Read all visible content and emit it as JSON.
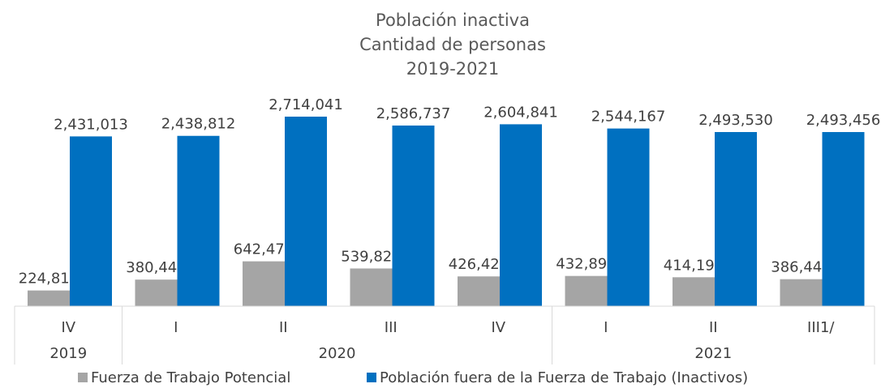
{
  "chart_data": {
    "type": "bar",
    "title": "Población inactiva",
    "subtitle": "Cantidad de personas",
    "period": "2019-2021",
    "categories": [
      "IV",
      "I",
      "II",
      "III",
      "IV",
      "I",
      "II",
      "III1/"
    ],
    "x_groups": [
      {
        "label": "2019",
        "categories": [
          "IV"
        ]
      },
      {
        "label": "2020",
        "categories": [
          "I",
          "II",
          "III",
          "IV"
        ]
      },
      {
        "label": "2021",
        "categories": [
          "I",
          "II",
          "III1/"
        ]
      }
    ],
    "series": [
      {
        "name": "Fuerza de Trabajo Potencial",
        "color": "#a5a5a5",
        "values": [
          224819,
          380448,
          642479,
          539822,
          426425,
          432896,
          414195,
          386441
        ],
        "value_labels": [
          "224,819",
          "380,448",
          "642,479",
          "539,822",
          "426,425",
          "432,896",
          "414,195",
          "386,441"
        ]
      },
      {
        "name": "Población fuera de la Fuerza de Trabajo (Inactivos)",
        "color": "#0070c0",
        "values": [
          2431013,
          2438812,
          2714041,
          2586737,
          2604841,
          2544167,
          2493530,
          2493456
        ],
        "value_labels": [
          "2,431,013",
          "2,438,812",
          "2,714,041",
          "2,586,737",
          "2,604,841",
          "2,544,167",
          "2,493,530",
          "2,493,456"
        ]
      }
    ],
    "legend": "bottom"
  }
}
